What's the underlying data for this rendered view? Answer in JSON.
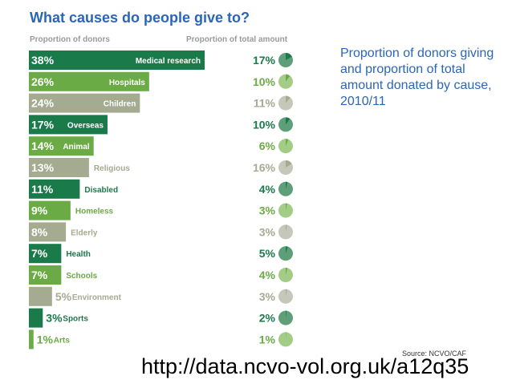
{
  "chart_data": {
    "type": "bar",
    "title": "What causes do people give to?",
    "column_headers": [
      "Proportion of donors",
      "Proportion of total amount"
    ],
    "description": "Proportion of donors giving and proportion of total amount donated by cause, 2010/11",
    "source": "Source: NCVO/CAF",
    "url": "http://data.ncvo-vol.org.uk/a12q35",
    "categories": [
      "Medical research",
      "Hospitals",
      "Children",
      "Overseas",
      "Animal",
      "Religious",
      "Disabled",
      "Homeless",
      "Elderly",
      "Health",
      "Schools",
      "Environment",
      "Sports",
      "Arts"
    ],
    "series": [
      {
        "name": "Proportion of donors",
        "unit": "%",
        "values": [
          38,
          26,
          24,
          17,
          14,
          13,
          11,
          9,
          8,
          7,
          7,
          5,
          3,
          1
        ]
      },
      {
        "name": "Proportion of total amount",
        "unit": "%",
        "values": [
          17,
          10,
          11,
          10,
          6,
          16,
          4,
          3,
          3,
          5,
          4,
          3,
          2,
          1
        ]
      }
    ],
    "colors": [
      "#1b7a4a",
      "#6bab45",
      "#a4ab91",
      "#1b7a4a",
      "#6bab45",
      "#a4ab91",
      "#1b7a4a",
      "#6bab45",
      "#a4ab91",
      "#1b7a4a",
      "#6bab45",
      "#a4ab91",
      "#1b7a4a",
      "#6bab45"
    ],
    "pie_base_colors": [
      "#5e9f79",
      "#a3cc86",
      "#c5c8b8",
      "#5e9f79",
      "#a3cc86",
      "#c5c8b8",
      "#5e9f79",
      "#a3cc86",
      "#c5c8b8",
      "#5e9f79",
      "#a3cc86",
      "#c5c8b8",
      "#5e9f79",
      "#a3cc86"
    ]
  }
}
